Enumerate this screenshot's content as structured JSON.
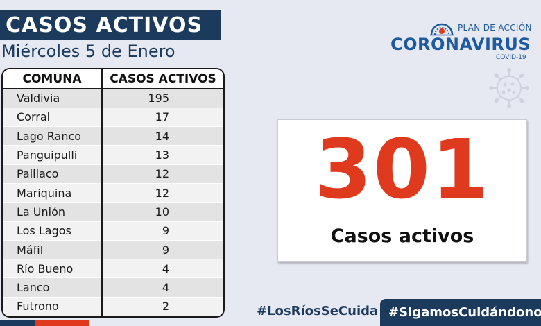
{
  "header": {
    "title": "CASOS ACTIVOS",
    "date": "Miércoles 5 de Enero"
  },
  "table": {
    "headers": [
      "COMUNA",
      "CASOS ACTIVOS"
    ],
    "rows": [
      {
        "comuna": "Valdivia",
        "casos": "195"
      },
      {
        "comuna": "Corral",
        "casos": "17"
      },
      {
        "comuna": "Lago Ranco",
        "casos": "14"
      },
      {
        "comuna": "Panguipulli",
        "casos": "13"
      },
      {
        "comuna": "Paillaco",
        "casos": "12"
      },
      {
        "comuna": "Mariquina",
        "casos": "12"
      },
      {
        "comuna": "La Unión",
        "casos": "10"
      },
      {
        "comuna": "Los Lagos",
        "casos": "9"
      },
      {
        "comuna": "Máfil",
        "casos": "9"
      },
      {
        "comuna": "Río Bueno",
        "casos": "4"
      },
      {
        "comuna": "Lanco",
        "casos": "4"
      },
      {
        "comuna": "Futrono",
        "casos": "2"
      }
    ]
  },
  "logo": {
    "plan_label": "PLAN DE ACCIÓN",
    "brand": "CORONAVIRUS",
    "sub": "COVID-19",
    "icons": [
      "government-seal-icon",
      "virus-icon"
    ]
  },
  "stat": {
    "value": "301",
    "label": "Casos activos"
  },
  "footer": {
    "hashtag_left": "#LosRíosSeCuida",
    "hashtag_right": "#SigamosCuidándonos"
  },
  "colors": {
    "navy": "#1c3a5c",
    "accent_red": "#e03a1e",
    "logo_blue": "#1e5aa0",
    "background": "#e6e8f2"
  }
}
